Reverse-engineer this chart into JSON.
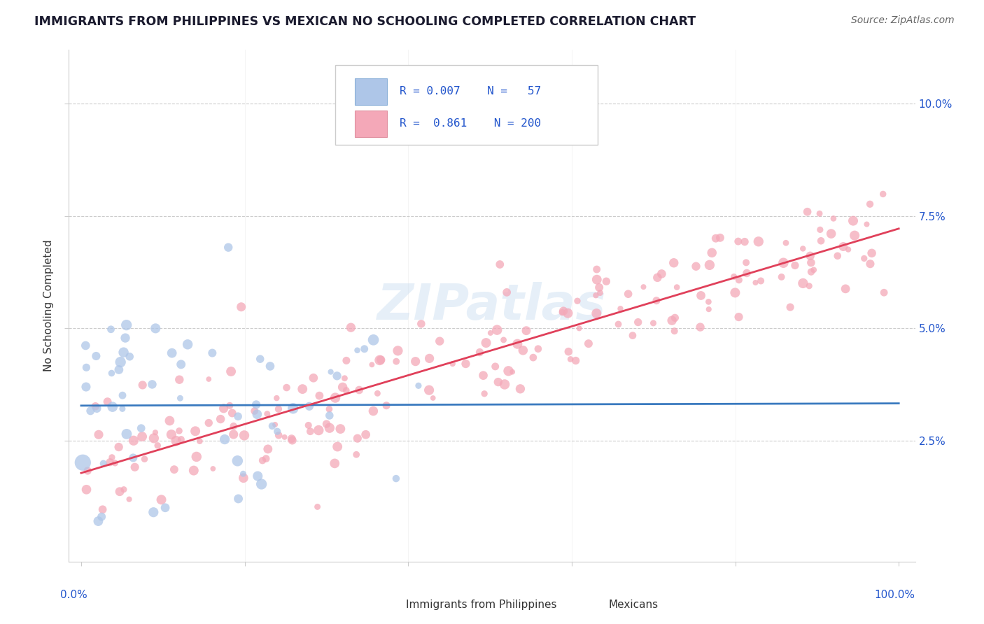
{
  "title": "IMMIGRANTS FROM PHILIPPINES VS MEXICAN NO SCHOOLING COMPLETED CORRELATION CHART",
  "source": "Source: ZipAtlas.com",
  "ylabel": "No Schooling Completed",
  "ytick_labels": [
    "2.5%",
    "5.0%",
    "7.5%",
    "10.0%"
  ],
  "ytick_vals": [
    0.025,
    0.05,
    0.075,
    0.1
  ],
  "color_blue": "#aec6e8",
  "color_pink": "#f4a8b8",
  "line_blue": "#3a7abf",
  "line_pink": "#e0405a",
  "background_color": "#ffffff",
  "watermark": "ZIPatlas",
  "title_color": "#1a1a2e",
  "source_color": "#666666",
  "axis_label_color": "#333333",
  "tick_color": "#2255cc",
  "grid_color": "#cccccc",
  "legend_text_color": "#2255cc",
  "legend_border_color": "#cccccc"
}
